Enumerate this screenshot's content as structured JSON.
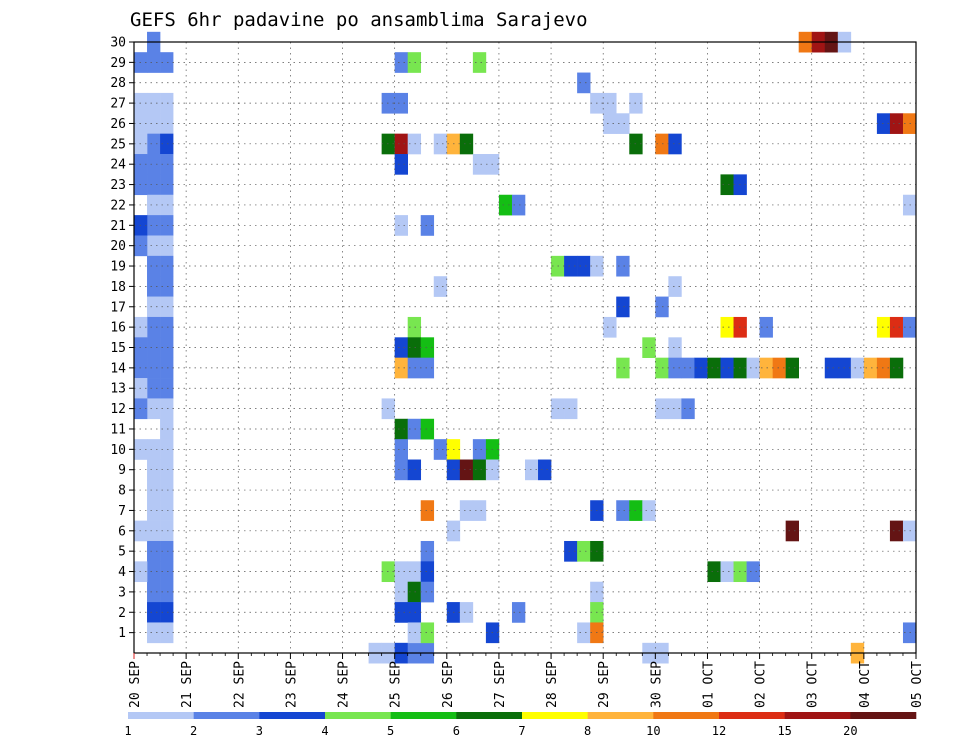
{
  "chart_data": {
    "type": "heatmap",
    "title": "GEFS 6hr padavine po ansamblima Sarajevo",
    "x_axis": {
      "description": "6-hour steps, 4 per day, from 20 SEP 00z to 05 OCT",
      "tick_labels": [
        "20 SEP",
        "21 SEP",
        "22 SEP",
        "23 SEP",
        "24 SEP",
        "25 SEP",
        "26 SEP",
        "27 SEP",
        "28 SEP",
        "29 SEP",
        "30 SEP",
        "01 OCT",
        "02 OCT",
        "03 OCT",
        "04 OCT",
        "05 OCT"
      ],
      "steps": 60
    },
    "y_axis": {
      "tick_labels": [
        "1",
        "2",
        "3",
        "4",
        "5",
        "6",
        "7",
        "8",
        "9",
        "10",
        "11",
        "12",
        "13",
        "14",
        "15",
        "16",
        "17",
        "18",
        "19",
        "20",
        "21",
        "22",
        "23",
        "24",
        "25",
        "26",
        "27",
        "28",
        "29",
        "30"
      ],
      "range": [
        0,
        30
      ]
    },
    "legend": {
      "placement": "bottom",
      "thresholds": [
        "1",
        "2",
        "3",
        "4",
        "5",
        "6",
        "7",
        "8",
        "10",
        "12",
        "15",
        "20"
      ],
      "colors": [
        "#b4c8f5",
        "#5a82e6",
        "#1446d2",
        "#78e650",
        "#14be14",
        "#0a6e0a",
        "#ffff00",
        "#ffb43c",
        "#f07814",
        "#dc2d14",
        "#a01414",
        "#641414"
      ]
    },
    "grid": "dotted",
    "cells": [
      {
        "x": 1,
        "y": 30,
        "c": 2
      },
      {
        "x": 1,
        "y": 29,
        "c": 2
      },
      {
        "x": 1,
        "y": 27,
        "c": 1
      },
      {
        "x": 1,
        "y": 26,
        "c": 1
      },
      {
        "x": 1,
        "y": 25,
        "c": 2
      },
      {
        "x": 1,
        "y": 24,
        "c": 2
      },
      {
        "x": 1,
        "y": 23,
        "c": 2
      },
      {
        "x": 1,
        "y": 22,
        "c": 1
      },
      {
        "x": 1,
        "y": 21,
        "c": 2
      },
      {
        "x": 1,
        "y": 20,
        "c": 1
      },
      {
        "x": 1,
        "y": 19,
        "c": 2
      },
      {
        "x": 1,
        "y": 18,
        "c": 2
      },
      {
        "x": 1,
        "y": 17,
        "c": 1
      },
      {
        "x": 1,
        "y": 16,
        "c": 2
      },
      {
        "x": 1,
        "y": 15,
        "c": 2
      },
      {
        "x": 1,
        "y": 14,
        "c": 2
      },
      {
        "x": 1,
        "y": 13,
        "c": 2
      },
      {
        "x": 1,
        "y": 12,
        "c": 1
      },
      {
        "x": 1,
        "y": 10,
        "c": 1
      },
      {
        "x": 1,
        "y": 9,
        "c": 1
      },
      {
        "x": 1,
        "y": 8,
        "c": 1
      },
      {
        "x": 1,
        "y": 7,
        "c": 1
      },
      {
        "x": 1,
        "y": 6,
        "c": 1
      },
      {
        "x": 1,
        "y": 5,
        "c": 2
      },
      {
        "x": 1,
        "y": 4,
        "c": 2
      },
      {
        "x": 1,
        "y": 3,
        "c": 2
      },
      {
        "x": 1,
        "y": 2,
        "c": 3
      },
      {
        "x": 1,
        "y": 1,
        "c": 1
      },
      {
        "x": 2,
        "y": 29,
        "c": 2
      },
      {
        "x": 2,
        "y": 27,
        "c": 1
      },
      {
        "x": 2,
        "y": 26,
        "c": 1
      },
      {
        "x": 2,
        "y": 25,
        "c": 3
      },
      {
        "x": 2,
        "y": 24,
        "c": 2
      },
      {
        "x": 2,
        "y": 23,
        "c": 2
      },
      {
        "x": 2,
        "y": 22,
        "c": 1
      },
      {
        "x": 2,
        "y": 21,
        "c": 2
      },
      {
        "x": 2,
        "y": 20,
        "c": 1
      },
      {
        "x": 2,
        "y": 19,
        "c": 2
      },
      {
        "x": 2,
        "y": 18,
        "c": 2
      },
      {
        "x": 2,
        "y": 17,
        "c": 1
      },
      {
        "x": 2,
        "y": 16,
        "c": 2
      },
      {
        "x": 2,
        "y": 15,
        "c": 2
      },
      {
        "x": 2,
        "y": 14,
        "c": 2
      },
      {
        "x": 2,
        "y": 13,
        "c": 2
      },
      {
        "x": 2,
        "y": 12,
        "c": 1
      },
      {
        "x": 2,
        "y": 11,
        "c": 1
      },
      {
        "x": 2,
        "y": 10,
        "c": 1
      },
      {
        "x": 2,
        "y": 9,
        "c": 1
      },
      {
        "x": 2,
        "y": 8,
        "c": 1
      },
      {
        "x": 2,
        "y": 7,
        "c": 1
      },
      {
        "x": 2,
        "y": 6,
        "c": 1
      },
      {
        "x": 2,
        "y": 5,
        "c": 2
      },
      {
        "x": 2,
        "y": 4,
        "c": 2
      },
      {
        "x": 2,
        "y": 3,
        "c": 2
      },
      {
        "x": 2,
        "y": 2,
        "c": 3
      },
      {
        "x": 2,
        "y": 1,
        "c": 1
      },
      {
        "x": 0,
        "y": 29,
        "c": 2
      },
      {
        "x": 0,
        "y": 27,
        "c": 1
      },
      {
        "x": 0,
        "y": 26,
        "c": 1
      },
      {
        "x": 0,
        "y": 25,
        "c": 1
      },
      {
        "x": 0,
        "y": 24,
        "c": 2
      },
      {
        "x": 0,
        "y": 23,
        "c": 2
      },
      {
        "x": 0,
        "y": 21,
        "c": 3
      },
      {
        "x": 0,
        "y": 20,
        "c": 2
      },
      {
        "x": 0,
        "y": 16,
        "c": 1
      },
      {
        "x": 0,
        "y": 15,
        "c": 2
      },
      {
        "x": 0,
        "y": 14,
        "c": 2
      },
      {
        "x": 0,
        "y": 13,
        "c": 1
      },
      {
        "x": 0,
        "y": 12,
        "c": 2
      },
      {
        "x": 0,
        "y": 10,
        "c": 1
      },
      {
        "x": 0,
        "y": 6,
        "c": 1
      },
      {
        "x": 0,
        "y": 4,
        "c": 1
      },
      {
        "x": 18,
        "y": 0,
        "c": 1
      },
      {
        "x": 19,
        "y": 0,
        "c": 1
      },
      {
        "x": 20,
        "y": 0,
        "c": 3
      },
      {
        "x": 21,
        "y": 0,
        "c": 2
      },
      {
        "x": 22,
        "y": 0,
        "c": 2
      },
      {
        "x": 20,
        "y": 29,
        "c": 2
      },
      {
        "x": 21,
        "y": 29,
        "c": 4
      },
      {
        "x": 26,
        "y": 29,
        "c": 4
      },
      {
        "x": 19,
        "y": 27,
        "c": 2
      },
      {
        "x": 20,
        "y": 27,
        "c": 2
      },
      {
        "x": 19,
        "y": 25,
        "c": 6
      },
      {
        "x": 20,
        "y": 25,
        "c": 11
      },
      {
        "x": 21,
        "y": 25,
        "c": 1
      },
      {
        "x": 23,
        "y": 25,
        "c": 1
      },
      {
        "x": 24,
        "y": 25,
        "c": 8
      },
      {
        "x": 25,
        "y": 25,
        "c": 6
      },
      {
        "x": 20,
        "y": 24,
        "c": 3
      },
      {
        "x": 26,
        "y": 24,
        "c": 1
      },
      {
        "x": 27,
        "y": 24,
        "c": 1
      },
      {
        "x": 28,
        "y": 22,
        "c": 5
      },
      {
        "x": 29,
        "y": 22,
        "c": 2
      },
      {
        "x": 20,
        "y": 21,
        "c": 1
      },
      {
        "x": 22,
        "y": 21,
        "c": 2
      },
      {
        "x": 32,
        "y": 19,
        "c": 4
      },
      {
        "x": 33,
        "y": 19,
        "c": 3
      },
      {
        "x": 34,
        "y": 19,
        "c": 3
      },
      {
        "x": 35,
        "y": 19,
        "c": 1
      },
      {
        "x": 37,
        "y": 19,
        "c": 2
      },
      {
        "x": 23,
        "y": 18,
        "c": 1
      },
      {
        "x": 41,
        "y": 18,
        "c": 1
      },
      {
        "x": 37,
        "y": 17,
        "c": 3
      },
      {
        "x": 40,
        "y": 17,
        "c": 2
      },
      {
        "x": 21,
        "y": 16,
        "c": 4
      },
      {
        "x": 36,
        "y": 16,
        "c": 1
      },
      {
        "x": 45,
        "y": 16,
        "c": 7
      },
      {
        "x": 46,
        "y": 16,
        "c": 10
      },
      {
        "x": 48,
        "y": 16,
        "c": 2
      },
      {
        "x": 20,
        "y": 15,
        "c": 3
      },
      {
        "x": 21,
        "y": 15,
        "c": 6
      },
      {
        "x": 22,
        "y": 15,
        "c": 5
      },
      {
        "x": 39,
        "y": 15,
        "c": 4
      },
      {
        "x": 41,
        "y": 15,
        "c": 1
      },
      {
        "x": 20,
        "y": 14,
        "c": 8
      },
      {
        "x": 21,
        "y": 14,
        "c": 2
      },
      {
        "x": 22,
        "y": 14,
        "c": 2
      },
      {
        "x": 37,
        "y": 14,
        "c": 4
      },
      {
        "x": 40,
        "y": 14,
        "c": 4
      },
      {
        "x": 41,
        "y": 14,
        "c": 2
      },
      {
        "x": 42,
        "y": 14,
        "c": 2
      },
      {
        "x": 43,
        "y": 14,
        "c": 3
      },
      {
        "x": 44,
        "y": 14,
        "c": 6
      },
      {
        "x": 45,
        "y": 14,
        "c": 3
      },
      {
        "x": 46,
        "y": 14,
        "c": 6
      },
      {
        "x": 47,
        "y": 14,
        "c": 1
      },
      {
        "x": 48,
        "y": 14,
        "c": 8
      },
      {
        "x": 49,
        "y": 14,
        "c": 9
      },
      {
        "x": 50,
        "y": 14,
        "c": 6
      },
      {
        "x": 19,
        "y": 12,
        "c": 1
      },
      {
        "x": 32,
        "y": 12,
        "c": 1
      },
      {
        "x": 33,
        "y": 12,
        "c": 1
      },
      {
        "x": 40,
        "y": 12,
        "c": 1
      },
      {
        "x": 41,
        "y": 12,
        "c": 1
      },
      {
        "x": 42,
        "y": 12,
        "c": 2
      },
      {
        "x": 20,
        "y": 11,
        "c": 6
      },
      {
        "x": 21,
        "y": 11,
        "c": 2
      },
      {
        "x": 22,
        "y": 11,
        "c": 5
      },
      {
        "x": 20,
        "y": 10,
        "c": 2
      },
      {
        "x": 23,
        "y": 10,
        "c": 2
      },
      {
        "x": 24,
        "y": 10,
        "c": 7
      },
      {
        "x": 26,
        "y": 10,
        "c": 2
      },
      {
        "x": 27,
        "y": 10,
        "c": 5
      },
      {
        "x": 20,
        "y": 9,
        "c": 2
      },
      {
        "x": 21,
        "y": 9,
        "c": 3
      },
      {
        "x": 24,
        "y": 9,
        "c": 3
      },
      {
        "x": 25,
        "y": 9,
        "c": 12
      },
      {
        "x": 26,
        "y": 9,
        "c": 6
      },
      {
        "x": 27,
        "y": 9,
        "c": 1
      },
      {
        "x": 30,
        "y": 9,
        "c": 1
      },
      {
        "x": 31,
        "y": 9,
        "c": 3
      },
      {
        "x": 22,
        "y": 7,
        "c": 9
      },
      {
        "x": 25,
        "y": 7,
        "c": 1
      },
      {
        "x": 26,
        "y": 7,
        "c": 1
      },
      {
        "x": 35,
        "y": 7,
        "c": 3
      },
      {
        "x": 37,
        "y": 7,
        "c": 2
      },
      {
        "x": 38,
        "y": 7,
        "c": 5
      },
      {
        "x": 39,
        "y": 7,
        "c": 1
      },
      {
        "x": 24,
        "y": 6,
        "c": 1
      },
      {
        "x": 50,
        "y": 6,
        "c": 12
      },
      {
        "x": 22,
        "y": 5,
        "c": 2
      },
      {
        "x": 33,
        "y": 5,
        "c": 3
      },
      {
        "x": 34,
        "y": 5,
        "c": 4
      },
      {
        "x": 35,
        "y": 5,
        "c": 6
      },
      {
        "x": 19,
        "y": 4,
        "c": 4
      },
      {
        "x": 20,
        "y": 4,
        "c": 1
      },
      {
        "x": 21,
        "y": 4,
        "c": 1
      },
      {
        "x": 22,
        "y": 4,
        "c": 3
      },
      {
        "x": 44,
        "y": 4,
        "c": 6
      },
      {
        "x": 45,
        "y": 4,
        "c": 1
      },
      {
        "x": 46,
        "y": 4,
        "c": 4
      },
      {
        "x": 47,
        "y": 4,
        "c": 2
      },
      {
        "x": 20,
        "y": 3,
        "c": 1
      },
      {
        "x": 21,
        "y": 3,
        "c": 6
      },
      {
        "x": 22,
        "y": 3,
        "c": 2
      },
      {
        "x": 35,
        "y": 3,
        "c": 1
      },
      {
        "x": 20,
        "y": 2,
        "c": 3
      },
      {
        "x": 21,
        "y": 2,
        "c": 3
      },
      {
        "x": 24,
        "y": 2,
        "c": 3
      },
      {
        "x": 25,
        "y": 2,
        "c": 1
      },
      {
        "x": 29,
        "y": 2,
        "c": 2
      },
      {
        "x": 35,
        "y": 2,
        "c": 4
      },
      {
        "x": 21,
        "y": 1,
        "c": 1
      },
      {
        "x": 22,
        "y": 1,
        "c": 4
      },
      {
        "x": 27,
        "y": 1,
        "c": 3
      },
      {
        "x": 34,
        "y": 1,
        "c": 1
      },
      {
        "x": 35,
        "y": 1,
        "c": 9
      },
      {
        "x": 35,
        "y": 27,
        "c": 1
      },
      {
        "x": 36,
        "y": 27,
        "c": 1
      },
      {
        "x": 38,
        "y": 27,
        "c": 1
      },
      {
        "x": 34,
        "y": 28,
        "c": 2
      },
      {
        "x": 36,
        "y": 26,
        "c": 1
      },
      {
        "x": 37,
        "y": 26,
        "c": 1
      },
      {
        "x": 57,
        "y": 26,
        "c": 3
      },
      {
        "x": 58,
        "y": 26,
        "c": 11
      },
      {
        "x": 59,
        "y": 26,
        "c": 9
      },
      {
        "x": 38,
        "y": 25,
        "c": 6
      },
      {
        "x": 40,
        "y": 25,
        "c": 9
      },
      {
        "x": 41,
        "y": 25,
        "c": 3
      },
      {
        "x": 45,
        "y": 23,
        "c": 6
      },
      {
        "x": 46,
        "y": 23,
        "c": 3
      },
      {
        "x": 59,
        "y": 22,
        "c": 1
      },
      {
        "x": 51,
        "y": 30,
        "c": 9
      },
      {
        "x": 52,
        "y": 30,
        "c": 11
      },
      {
        "x": 53,
        "y": 30,
        "c": 12
      },
      {
        "x": 54,
        "y": 30,
        "c": 1
      },
      {
        "x": 57,
        "y": 16,
        "c": 7
      },
      {
        "x": 58,
        "y": 16,
        "c": 10
      },
      {
        "x": 59,
        "y": 16,
        "c": 2
      },
      {
        "x": 53,
        "y": 14,
        "c": 3
      },
      {
        "x": 54,
        "y": 14,
        "c": 3
      },
      {
        "x": 55,
        "y": 14,
        "c": 1
      },
      {
        "x": 56,
        "y": 14,
        "c": 8
      },
      {
        "x": 57,
        "y": 14,
        "c": 9
      },
      {
        "x": 58,
        "y": 14,
        "c": 6
      },
      {
        "x": 58,
        "y": 6,
        "c": 12
      },
      {
        "x": 59,
        "y": 6,
        "c": 1
      },
      {
        "x": 59,
        "y": 1,
        "c": 2
      },
      {
        "x": 39,
        "y": 0,
        "c": 1
      },
      {
        "x": 40,
        "y": 0,
        "c": 1
      },
      {
        "x": 55,
        "y": 0,
        "c": 8
      }
    ]
  }
}
